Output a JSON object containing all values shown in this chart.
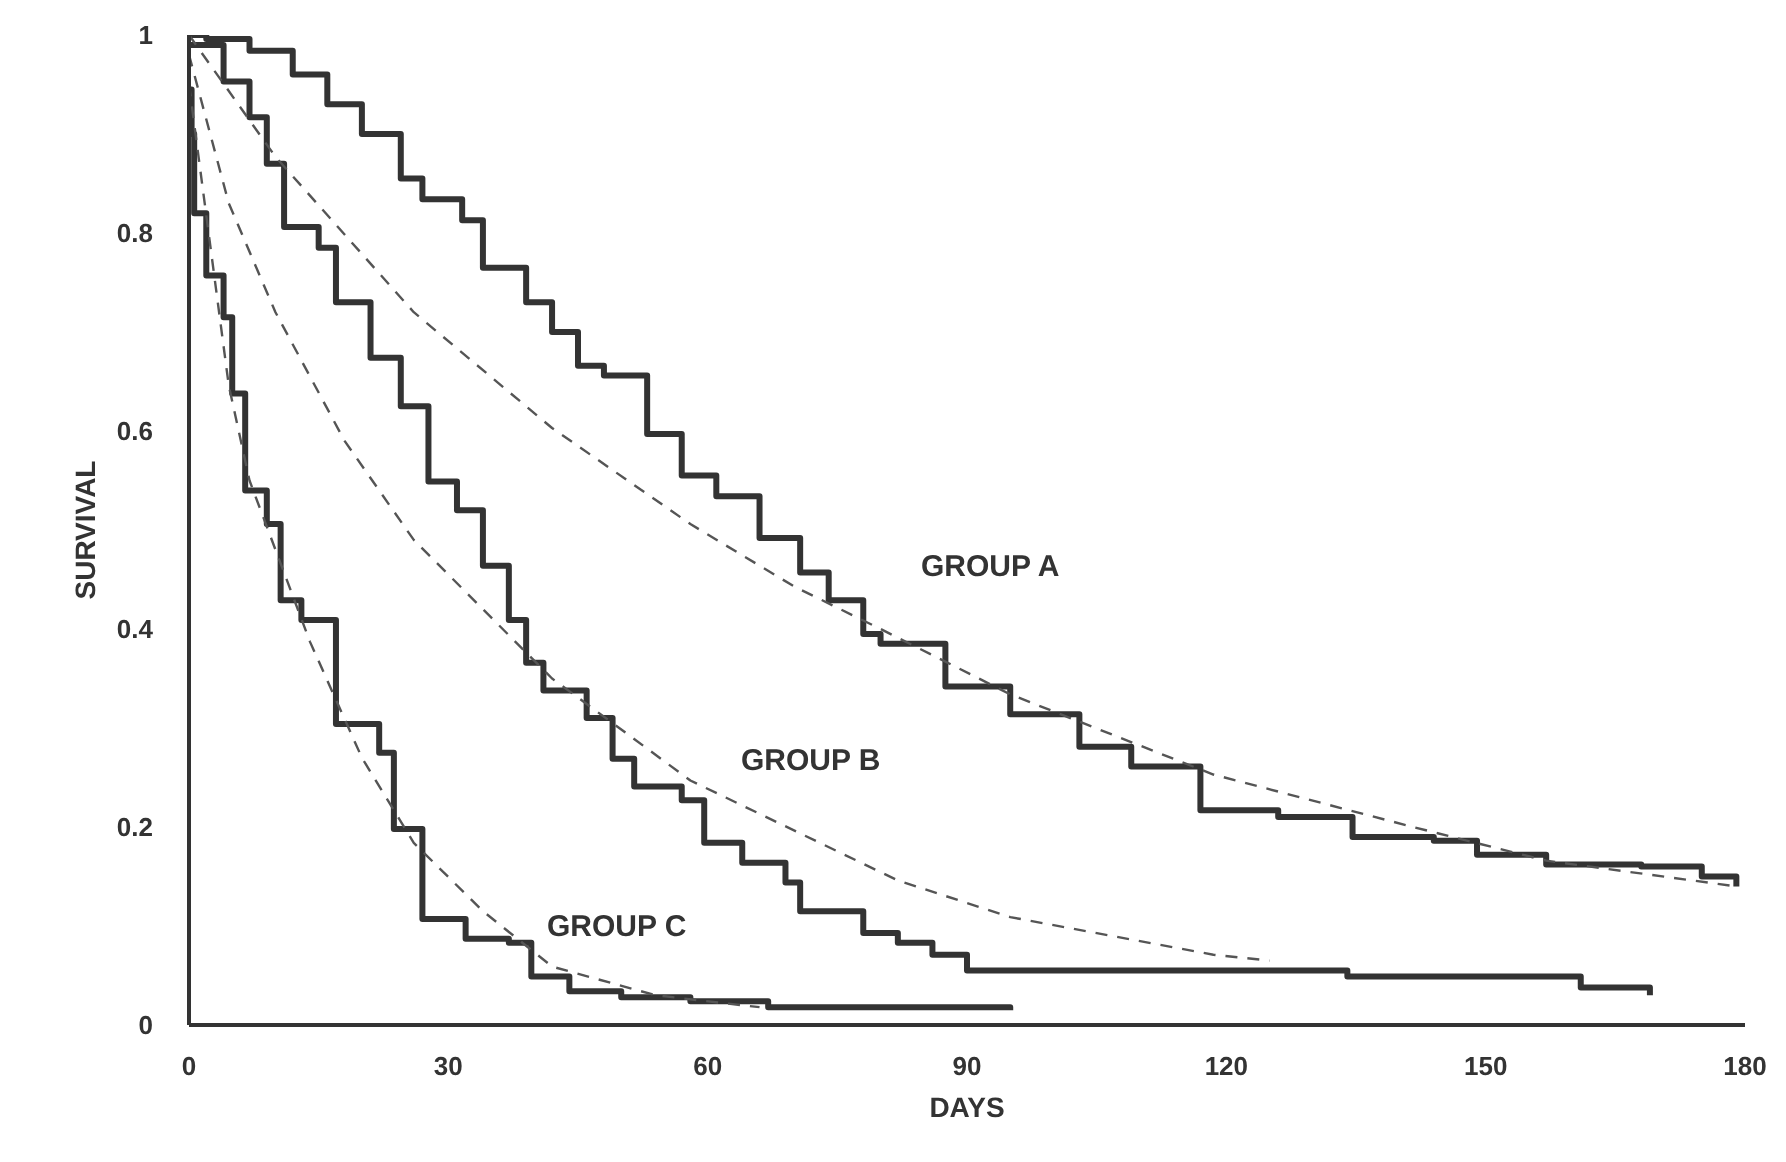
{
  "chart_data": {
    "type": "step",
    "xlabel": "DAYS",
    "ylabel": "SURVIVAL",
    "xlim": [
      0,
      180
    ],
    "ylim": [
      0,
      1
    ],
    "xticks": [
      0,
      30,
      60,
      90,
      120,
      150,
      180
    ],
    "yticks": [
      0,
      {
        "value": 0.2,
        "label": "0.2"
      },
      {
        "value": 0.4,
        "label": "0.4"
      },
      {
        "value": 0.6,
        "label": "0.6"
      },
      {
        "value": 0.8,
        "label": "0.8"
      },
      1
    ],
    "grid": false,
    "marker": "none",
    "series": [
      {
        "color": "#333333",
        "line_style": "solid",
        "x": [
          0,
          2,
          7,
          12,
          16,
          20,
          24.5,
          27,
          31.6,
          34,
          39,
          42,
          45,
          48,
          53,
          57,
          61,
          66,
          70.7,
          74,
          78,
          80,
          87.5,
          95,
          103,
          109,
          117,
          126,
          134.6,
          144,
          149,
          157,
          168,
          175,
          179
        ],
        "values": [
          1.0,
          0.996,
          0.984,
          0.96,
          0.93,
          0.9,
          0.855,
          0.834,
          0.813,
          0.765,
          0.73,
          0.7,
          0.666,
          0.656,
          0.597,
          0.555,
          0.534,
          0.492,
          0.457,
          0.429,
          0.395,
          0.385,
          0.342,
          0.314,
          0.281,
          0.261,
          0.217,
          0.21,
          0.19,
          0.186,
          0.172,
          0.162,
          0.16,
          0.15,
          0.14
        ]
      },
      {
        "color": "#333333",
        "line_style": "solid",
        "x": [
          0,
          4,
          7,
          9,
          11,
          15,
          17,
          21,
          24.5,
          27.7,
          31,
          34,
          37,
          39,
          41,
          46,
          49,
          51.5,
          57,
          59.6,
          64,
          69,
          70.7,
          78,
          82,
          86,
          90,
          124,
          134,
          154,
          161,
          169
        ],
        "values": [
          0.99,
          0.953,
          0.917,
          0.87,
          0.806,
          0.785,
          0.73,
          0.674,
          0.625,
          0.549,
          0.52,
          0.464,
          0.409,
          0.366,
          0.338,
          0.31,
          0.269,
          0.241,
          0.227,
          0.184,
          0.164,
          0.144,
          0.115,
          0.093,
          0.083,
          0.071,
          0.055,
          0.055,
          0.049,
          0.049,
          0.038,
          0.03
        ]
      },
      {
        "color": "#333333",
        "line_style": "solid",
        "x": [
          0,
          0.3,
          0.6,
          2,
          4,
          5,
          6.5,
          9,
          10.6,
          13,
          17,
          22,
          23.7,
          27,
          32,
          37,
          39.6,
          44,
          50,
          58,
          67,
          95
        ],
        "values": [
          0.945,
          0.9,
          0.82,
          0.757,
          0.715,
          0.638,
          0.54,
          0.506,
          0.429,
          0.409,
          0.304,
          0.275,
          0.198,
          0.107,
          0.087,
          0.083,
          0.049,
          0.034,
          0.028,
          0.024,
          0.018,
          0.015
        ]
      },
      {
        "type": "line",
        "color": "#555555",
        "line_style": "dashed",
        "x": [
          0,
          10,
          26,
          42,
          58,
          70,
          80,
          95,
          118.5,
          141.6,
          157,
          179
        ],
        "values": [
          1.0,
          0.877,
          0.72,
          0.603,
          0.506,
          0.443,
          0.4,
          0.334,
          0.253,
          0.2,
          0.166,
          0.14
        ]
      },
      {
        "type": "line",
        "color": "#555555",
        "line_style": "dashed",
        "x": [
          0,
          4.6,
          10,
          18,
          26,
          34,
          42,
          58,
          82,
          95,
          118.5,
          125
        ],
        "values": [
          0.98,
          0.83,
          0.72,
          0.59,
          0.49,
          0.42,
          0.35,
          0.247,
          0.146,
          0.109,
          0.071,
          0.065
        ]
      },
      {
        "type": "line",
        "color": "#555555",
        "line_style": "dashed",
        "x": [
          0,
          4.6,
          7,
          14,
          20,
          26,
          34,
          42,
          54,
          66
        ],
        "values": [
          0.95,
          0.646,
          0.55,
          0.387,
          0.27,
          0.184,
          0.115,
          0.059,
          0.03,
          0.018
        ]
      }
    ],
    "annotations": [
      "GROUP A",
      "GROUP B",
      "GROUP C"
    ]
  }
}
